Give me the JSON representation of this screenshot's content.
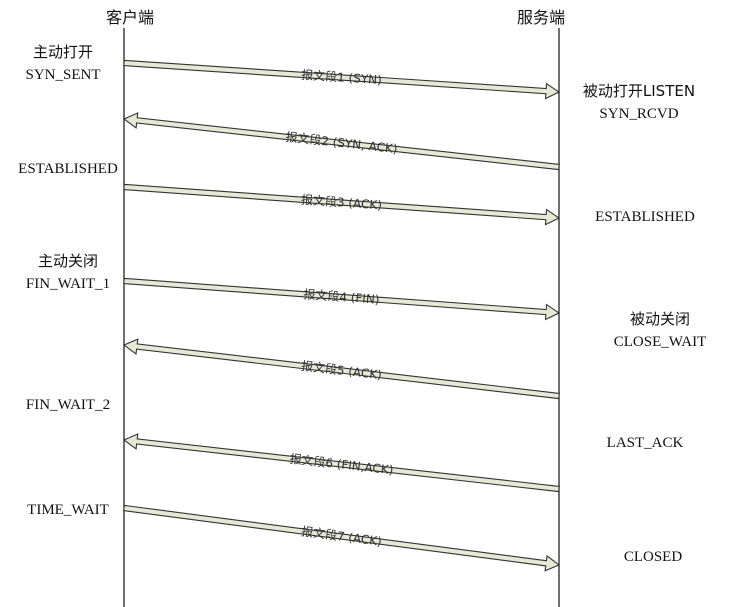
{
  "client_header": "客户端",
  "server_header": "服务端",
  "client_states": [
    {
      "id": "c-active-open",
      "lines": [
        "主动打开",
        "SYN_SENT"
      ]
    },
    {
      "id": "c-established",
      "lines": [
        "ESTABLISHED"
      ]
    },
    {
      "id": "c-active-close",
      "lines": [
        "主动关闭",
        "FIN_WAIT_1"
      ]
    },
    {
      "id": "c-fin-wait-2",
      "lines": [
        "FIN_WAIT_2"
      ]
    },
    {
      "id": "c-time-wait",
      "lines": [
        "TIME_WAIT"
      ]
    }
  ],
  "server_states": [
    {
      "id": "s-passive-open",
      "lines": [
        "被动打开LISTEN",
        "SYN_RCVD"
      ]
    },
    {
      "id": "s-established",
      "lines": [
        "ESTABLISHED"
      ]
    },
    {
      "id": "s-passive-close",
      "lines": [
        "被动关闭",
        "CLOSE_WAIT"
      ]
    },
    {
      "id": "s-last-ack",
      "lines": [
        "LAST_ACK"
      ]
    },
    {
      "id": "s-closed",
      "lines": [
        "CLOSED"
      ]
    }
  ],
  "segments": [
    {
      "label": "报文段1 (SYN)",
      "direction": "client-to-server"
    },
    {
      "label": "报文段2 (SYN, ACK)",
      "direction": "server-to-client"
    },
    {
      "label": "报文段3 (ACK)",
      "direction": "client-to-server"
    },
    {
      "label": "报文段4 (FIN)",
      "direction": "client-to-server"
    },
    {
      "label": "报文段5 (ACK)",
      "direction": "server-to-client"
    },
    {
      "label": "报文段6 (FIN,ACK)",
      "direction": "server-to-client"
    },
    {
      "label": "报文段7 (ACK)",
      "direction": "client-to-server"
    }
  ],
  "colors": {
    "arrow_fill": "#e6e9d6",
    "arrow_stroke": "#333333",
    "lifeline": "#222222",
    "text": "#111111"
  }
}
